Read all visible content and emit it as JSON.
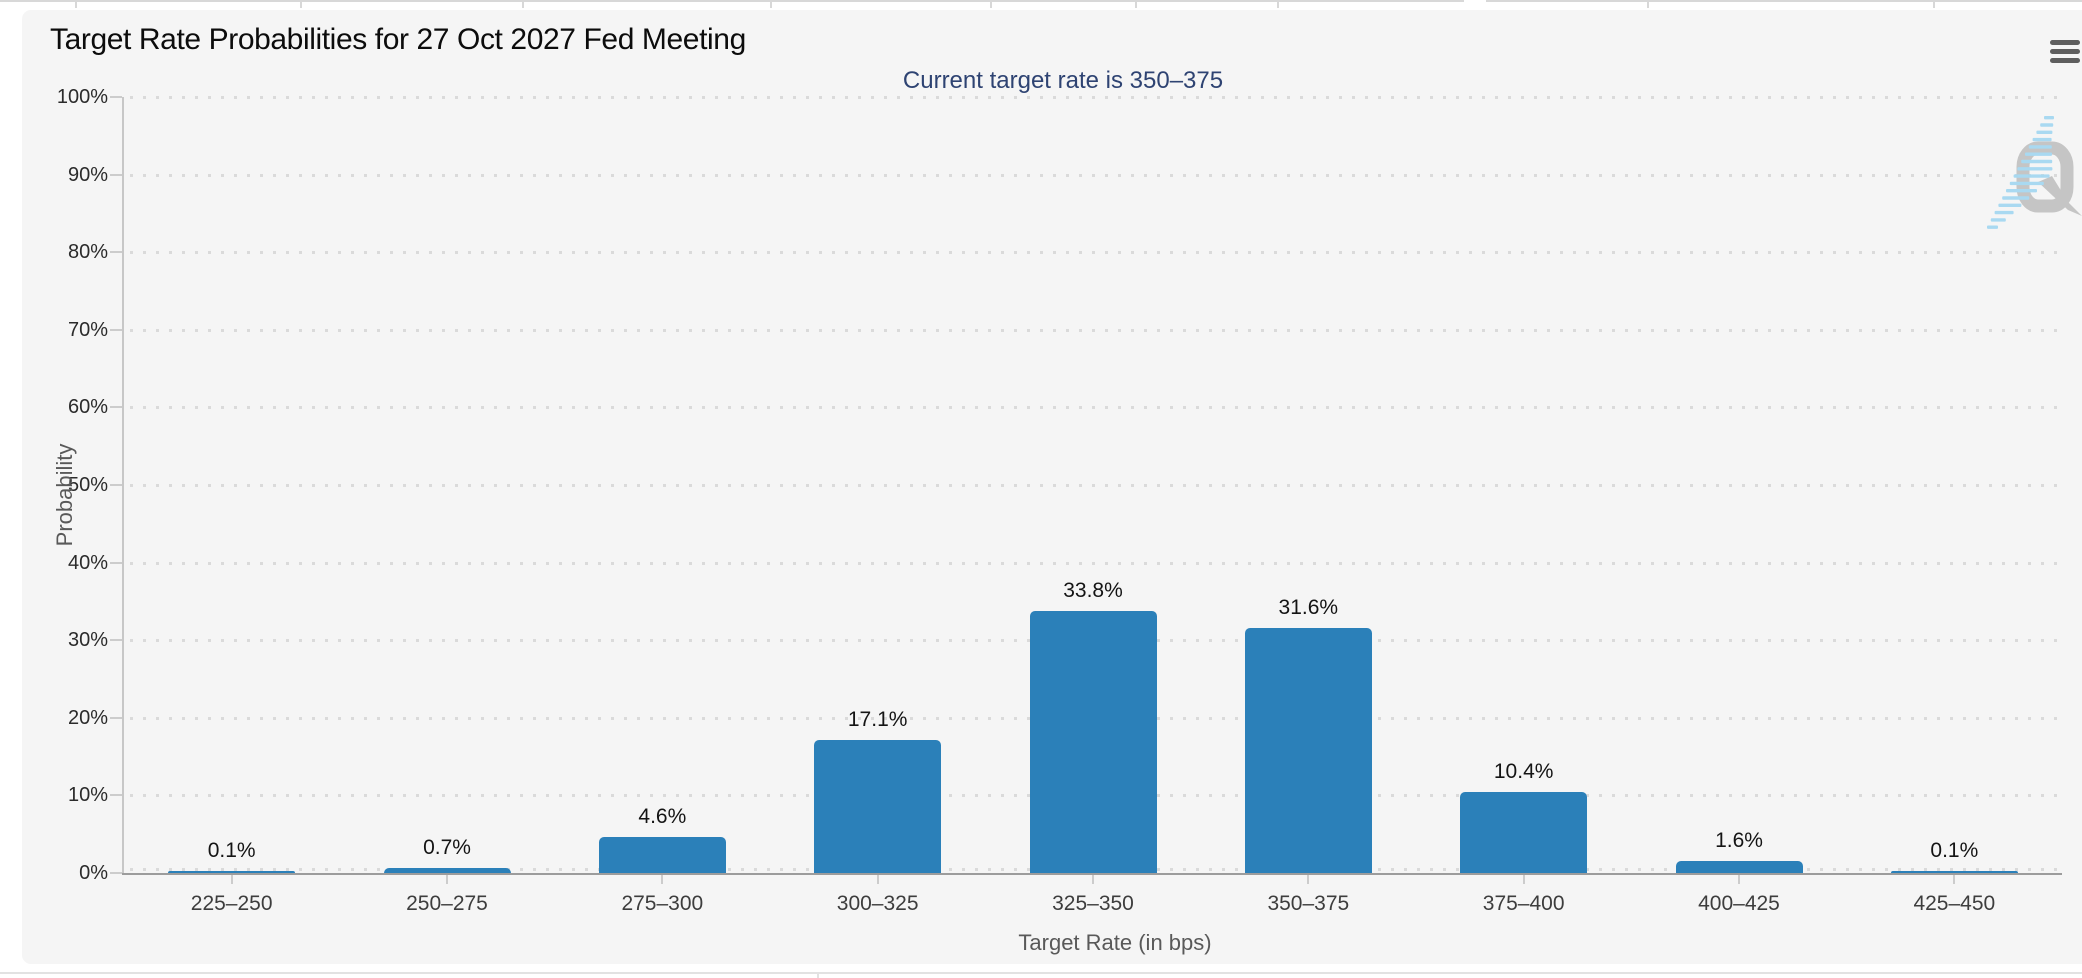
{
  "header": {
    "menu_icon": "hamburger-menu-icon"
  },
  "chart_data": {
    "type": "bar",
    "title": "Target Rate Probabilities for 27 Oct 2027 Fed Meeting",
    "subtitle": "Current target rate is 350–375",
    "categories": [
      "225–250",
      "250–275",
      "275–300",
      "300–325",
      "325–350",
      "350–375",
      "375–400",
      "400–425",
      "425–450"
    ],
    "values": [
      0.1,
      0.7,
      4.6,
      17.1,
      33.8,
      31.6,
      10.4,
      1.6,
      0.1
    ],
    "value_labels": [
      "0.1%",
      "0.7%",
      "4.6%",
      "17.1%",
      "33.8%",
      "31.6%",
      "10.4%",
      "1.6%",
      "0.1%"
    ],
    "xlabel": "Target Rate (in bps)",
    "ylabel": "Probability",
    "ylim": [
      0,
      100
    ],
    "yticks": [
      "0%",
      "10%",
      "20%",
      "30%",
      "40%",
      "50%",
      "60%",
      "70%",
      "80%",
      "90%",
      "100%"
    ],
    "grid": "dotted-horizontal",
    "legend": "none",
    "bar_color": "#2b80b9"
  },
  "watermark": {
    "letter": "Q",
    "gray": "#c3c3c3",
    "blue": "#a5d8f1"
  },
  "colors": {
    "card_bg": "#f5f5f5",
    "subtitle_text": "#2e4372",
    "grid_dot": "#dadada",
    "axis_line": "#9c9c9c"
  }
}
